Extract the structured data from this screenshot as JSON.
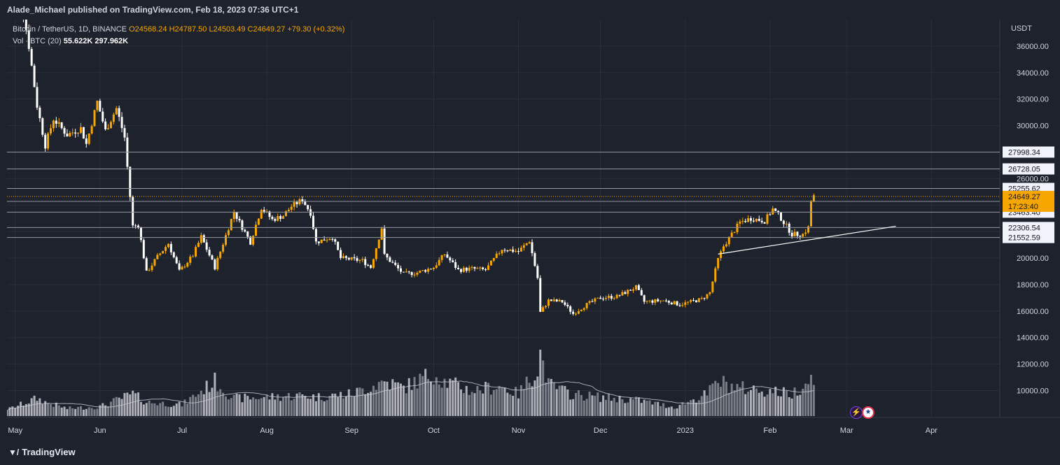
{
  "header": {
    "published": "Alade_Michael published on TradingView.com, Feb 18, 2023 07:36 UTC+1"
  },
  "legend": {
    "symbol": "Bitcoin / TetherUS, 1D, BINANCE",
    "open": "O24568.24",
    "high": "H24787.50",
    "low": "L24503.49",
    "close": "C24649.27",
    "change": "+79.30 (+0.32%)",
    "vol_label": "Vol · BTC (20)",
    "vol_value": "55.622K",
    "vol_ma": "297.962K"
  },
  "footer": {
    "brand": "TradingView"
  },
  "colors": {
    "background": "#1e222d",
    "grid": "#2a2e39",
    "up": "#f7a600",
    "down": "#ffffff",
    "volume": "#b2b5be",
    "level_line": "#9598a1",
    "price_tag": "#f7a600"
  },
  "chart_data": {
    "type": "candlestick",
    "title": "Bitcoin / TetherUS, 1D, BINANCE",
    "y_axis": {
      "unit": "USDT",
      "range": [
        9500,
        38000
      ],
      "ticks": [
        10000,
        12000,
        14000,
        16000,
        18000,
        20000,
        22000,
        24000,
        26000,
        28000,
        30000,
        32000,
        34000,
        36000
      ],
      "tick_labels": [
        "10000.00",
        "12000.00",
        "14000.00",
        "16000.00",
        "18000.00",
        "20000.00",
        "22000.00",
        "24000.00",
        "26000.00",
        "28000.00",
        "30000.00",
        "32000.00",
        "34000.00",
        "36000.00"
      ]
    },
    "x_axis": {
      "start": "2022-04-28",
      "end": "2023-04-26",
      "labels": [
        {
          "text": "May",
          "date": "2022-05-01"
        },
        {
          "text": "Jun",
          "date": "2022-06-01"
        },
        {
          "text": "Jul",
          "date": "2022-07-01"
        },
        {
          "text": "Aug",
          "date": "2022-08-01"
        },
        {
          "text": "Sep",
          "date": "2022-09-01"
        },
        {
          "text": "Oct",
          "date": "2022-10-01"
        },
        {
          "text": "Nov",
          "date": "2022-11-01"
        },
        {
          "text": "Dec",
          "date": "2022-12-01"
        },
        {
          "text": "2023",
          "date": "2023-01-01"
        },
        {
          "text": "Feb",
          "date": "2023-02-01"
        },
        {
          "text": "Mar",
          "date": "2023-03-01"
        },
        {
          "text": "Apr",
          "date": "2023-04-01"
        }
      ]
    },
    "price_path": [
      [
        "2022-04-28",
        39500
      ],
      [
        "2022-05-04",
        38500
      ],
      [
        "2022-05-06",
        36000
      ],
      [
        "2022-05-09",
        31500
      ],
      [
        "2022-05-12",
        28500
      ],
      [
        "2022-05-15",
        30500
      ],
      [
        "2022-05-20",
        29300
      ],
      [
        "2022-05-25",
        29800
      ],
      [
        "2022-05-27",
        28600
      ],
      [
        "2022-05-31",
        31800
      ],
      [
        "2022-06-03",
        29600
      ],
      [
        "2022-06-07",
        31300
      ],
      [
        "2022-06-10",
        29100
      ],
      [
        "2022-06-13",
        22400
      ],
      [
        "2022-06-15",
        22500
      ],
      [
        "2022-06-18",
        18900
      ],
      [
        "2022-06-22",
        20100
      ],
      [
        "2022-06-26",
        21100
      ],
      [
        "2022-06-30",
        19000
      ],
      [
        "2022-07-05",
        20200
      ],
      [
        "2022-07-08",
        21600
      ],
      [
        "2022-07-13",
        19300
      ],
      [
        "2022-07-18",
        22300
      ],
      [
        "2022-07-20",
        23500
      ],
      [
        "2022-07-22",
        22700
      ],
      [
        "2022-07-26",
        21200
      ],
      [
        "2022-07-30",
        23800
      ],
      [
        "2022-08-03",
        22900
      ],
      [
        "2022-08-07",
        23200
      ],
      [
        "2022-08-10",
        23900
      ],
      [
        "2022-08-14",
        24400
      ],
      [
        "2022-08-17",
        23400
      ],
      [
        "2022-08-19",
        21200
      ],
      [
        "2022-08-25",
        21600
      ],
      [
        "2022-08-28",
        20000
      ],
      [
        "2022-09-05",
        19800
      ],
      [
        "2022-09-08",
        19300
      ],
      [
        "2022-09-12",
        22300
      ],
      [
        "2022-09-13",
        20200
      ],
      [
        "2022-09-20",
        18800
      ],
      [
        "2022-09-25",
        18900
      ],
      [
        "2022-10-01",
        19300
      ],
      [
        "2022-10-05",
        20300
      ],
      [
        "2022-10-10",
        19100
      ],
      [
        "2022-10-15",
        19200
      ],
      [
        "2022-10-20",
        19100
      ],
      [
        "2022-10-26",
        20700
      ],
      [
        "2022-11-01",
        20500
      ],
      [
        "2022-11-05",
        21300
      ],
      [
        "2022-11-08",
        18500
      ],
      [
        "2022-11-09",
        15900
      ],
      [
        "2022-11-12",
        16800
      ],
      [
        "2022-11-17",
        16700
      ],
      [
        "2022-11-21",
        15800
      ],
      [
        "2022-11-26",
        16500
      ],
      [
        "2022-12-01",
        17000
      ],
      [
        "2022-12-07",
        17100
      ],
      [
        "2022-12-14",
        17800
      ],
      [
        "2022-12-17",
        16700
      ],
      [
        "2022-12-24",
        16800
      ],
      [
        "2022-12-30",
        16500
      ],
      [
        "2023-01-07",
        16900
      ],
      [
        "2023-01-10",
        17400
      ],
      [
        "2023-01-13",
        19900
      ],
      [
        "2023-01-15",
        20900
      ],
      [
        "2023-01-21",
        22700
      ],
      [
        "2023-01-25",
        23000
      ],
      [
        "2023-01-30",
        22800
      ],
      [
        "2023-02-02",
        23700
      ],
      [
        "2023-02-05",
        23000
      ],
      [
        "2023-02-09",
        21800
      ],
      [
        "2023-02-13",
        21800
      ],
      [
        "2023-02-15",
        22300
      ],
      [
        "2023-02-16",
        24300
      ],
      [
        "2023-02-17",
        24649
      ]
    ],
    "volume_scale_note": "volume histogram rendered in lower pane, no volume axis printed",
    "volume_profile": [
      [
        "2022-04-28",
        0.1
      ],
      [
        "2022-05-09",
        0.28
      ],
      [
        "2022-05-12",
        0.22
      ],
      [
        "2022-05-20",
        0.12
      ],
      [
        "2022-06-01",
        0.15
      ],
      [
        "2022-06-13",
        0.35
      ],
      [
        "2022-06-18",
        0.22
      ],
      [
        "2022-07-01",
        0.18
      ],
      [
        "2022-07-13",
        0.55
      ],
      [
        "2022-07-20",
        0.28
      ],
      [
        "2022-08-01",
        0.3
      ],
      [
        "2022-08-15",
        0.33
      ],
      [
        "2022-08-19",
        0.3
      ],
      [
        "2022-09-01",
        0.35
      ],
      [
        "2022-09-13",
        0.55
      ],
      [
        "2022-09-20",
        0.45
      ],
      [
        "2022-10-01",
        0.68
      ],
      [
        "2022-10-05",
        0.55
      ],
      [
        "2022-10-15",
        0.4
      ],
      [
        "2022-10-25",
        0.48
      ],
      [
        "2022-11-01",
        0.35
      ],
      [
        "2022-11-08",
        0.75
      ],
      [
        "2022-11-09",
        1.0
      ],
      [
        "2022-11-12",
        0.5
      ],
      [
        "2022-11-20",
        0.35
      ],
      [
        "2022-12-01",
        0.3
      ],
      [
        "2022-12-15",
        0.25
      ],
      [
        "2022-12-28",
        0.14
      ],
      [
        "2023-01-09",
        0.35
      ],
      [
        "2023-01-13",
        0.55
      ],
      [
        "2023-01-20",
        0.45
      ],
      [
        "2023-02-01",
        0.4
      ],
      [
        "2023-02-09",
        0.35
      ],
      [
        "2023-02-16",
        0.6
      ],
      [
        "2023-02-17",
        0.66
      ]
    ],
    "horizontal_levels": [
      {
        "label": "27998.34",
        "value": 27998.34
      },
      {
        "label": "26728.05",
        "value": 26728.05
      },
      {
        "label": "25255.62",
        "value": 25255.62
      },
      {
        "label": "24277.60",
        "value": 24277.6
      },
      {
        "label": "23463.40",
        "value": 23463.4
      },
      {
        "label": "22306.54",
        "value": 22306.54
      },
      {
        "label": "21552.59",
        "value": 21552.59
      }
    ],
    "current_price": {
      "label": "24649.27",
      "countdown": "17:23:40",
      "value": 24649.27
    },
    "trendline": {
      "from": [
        "2023-01-13",
        20300
      ],
      "to": [
        "2023-03-19",
        22400
      ]
    }
  }
}
